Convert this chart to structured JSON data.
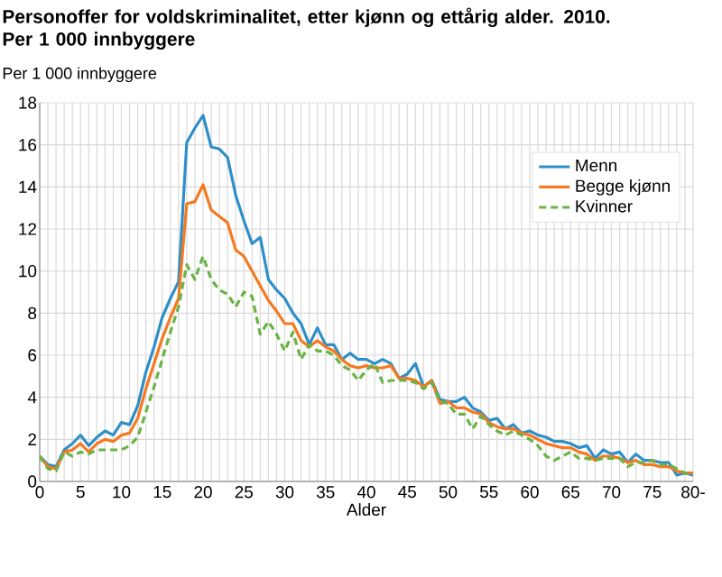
{
  "chart_data": {
    "type": "line",
    "title": "Personoffer for voldskriminalitet, etter kjønn og ettårig alder. 2010. Per 1 000 innbyggere",
    "ylabel": "Per 1 000 innbyggere",
    "xlabel": "Alder",
    "x": [
      0,
      1,
      2,
      3,
      4,
      5,
      6,
      7,
      8,
      9,
      10,
      11,
      12,
      13,
      14,
      15,
      16,
      17,
      18,
      19,
      20,
      21,
      22,
      23,
      24,
      25,
      26,
      27,
      28,
      29,
      30,
      31,
      32,
      33,
      34,
      35,
      36,
      37,
      38,
      39,
      40,
      41,
      42,
      43,
      44,
      45,
      46,
      47,
      48,
      49,
      50,
      51,
      52,
      53,
      54,
      55,
      56,
      57,
      58,
      59,
      60,
      61,
      62,
      63,
      64,
      65,
      66,
      67,
      68,
      69,
      70,
      71,
      72,
      73,
      74,
      75,
      76,
      77,
      78,
      79,
      80
    ],
    "series": [
      {
        "name": "Menn",
        "color": "#2e8fc8",
        "line_style": "solid",
        "values": [
          1.2,
          0.8,
          0.7,
          1.5,
          1.8,
          2.2,
          1.7,
          2.1,
          2.4,
          2.2,
          2.8,
          2.7,
          3.6,
          5.2,
          6.4,
          7.8,
          8.7,
          9.5,
          16.1,
          16.8,
          17.4,
          15.9,
          15.8,
          15.4,
          13.6,
          12.4,
          11.3,
          11.6,
          9.6,
          9.1,
          8.7,
          8.0,
          7.5,
          6.5,
          7.3,
          6.5,
          6.5,
          5.8,
          6.1,
          5.8,
          5.8,
          5.6,
          5.8,
          5.6,
          4.9,
          5.1,
          5.6,
          4.5,
          4.8,
          3.9,
          3.8,
          3.8,
          4.0,
          3.5,
          3.3,
          2.9,
          3.0,
          2.5,
          2.7,
          2.3,
          2.4,
          2.2,
          2.1,
          1.9,
          1.9,
          1.8,
          1.6,
          1.7,
          1.1,
          1.5,
          1.3,
          1.4,
          0.9,
          1.3,
          1.0,
          1.0,
          0.9,
          0.9,
          0.3,
          0.4,
          0.3
        ]
      },
      {
        "name": "Begge kjønn",
        "color": "#f47920",
        "line_style": "solid",
        "values": [
          1.2,
          0.7,
          0.6,
          1.4,
          1.5,
          1.8,
          1.4,
          1.8,
          2.0,
          1.9,
          2.2,
          2.3,
          3.0,
          4.4,
          5.6,
          6.8,
          7.8,
          8.7,
          13.2,
          13.3,
          14.1,
          12.9,
          12.6,
          12.3,
          11.0,
          10.7,
          10.0,
          9.3,
          8.6,
          8.1,
          7.5,
          7.5,
          6.7,
          6.4,
          6.7,
          6.4,
          6.2,
          5.8,
          5.5,
          5.4,
          5.5,
          5.4,
          5.4,
          5.5,
          4.9,
          4.9,
          4.8,
          4.5,
          4.8,
          3.7,
          3.8,
          3.5,
          3.5,
          3.3,
          3.2,
          2.8,
          2.6,
          2.5,
          2.5,
          2.3,
          2.2,
          2.0,
          1.8,
          1.7,
          1.6,
          1.6,
          1.4,
          1.3,
          1.0,
          1.2,
          1.2,
          1.1,
          0.9,
          1.0,
          0.8,
          0.8,
          0.7,
          0.7,
          0.5,
          0.4,
          0.4
        ]
      },
      {
        "name": "Kvinner",
        "color": "#6ab344",
        "line_style": "dashed",
        "values": [
          1.2,
          0.6,
          0.5,
          1.4,
          1.2,
          1.4,
          1.3,
          1.5,
          1.5,
          1.5,
          1.5,
          1.7,
          2.1,
          3.3,
          4.5,
          5.8,
          7.1,
          8.3,
          10.3,
          9.6,
          10.7,
          9.6,
          9.1,
          8.9,
          8.3,
          9.0,
          8.8,
          7.0,
          7.6,
          7.0,
          6.2,
          7.1,
          5.8,
          6.5,
          6.2,
          6.2,
          6.0,
          5.5,
          5.3,
          4.8,
          5.3,
          5.6,
          4.7,
          4.8,
          4.8,
          4.8,
          4.7,
          4.4,
          4.7,
          3.8,
          3.7,
          3.2,
          3.2,
          2.5,
          3.1,
          2.7,
          2.4,
          2.2,
          2.4,
          2.2,
          2.0,
          1.7,
          1.2,
          1.0,
          1.2,
          1.4,
          1.1,
          1.1,
          1.0,
          1.1,
          1.1,
          1.1,
          0.7,
          0.9,
          0.9,
          1.0,
          0.8,
          0.8,
          0.6,
          0.4,
          0.3
        ]
      }
    ],
    "xlim": [
      0,
      80
    ],
    "ylim": [
      0,
      18
    ],
    "xticks": [
      0,
      {
        "value": 1,
        "label": null
      },
      {
        "value": 2,
        "label": null
      },
      {
        "value": 3,
        "label": null
      },
      {
        "value": 4,
        "label": null
      },
      5,
      {
        "value": 6,
        "label": null
      },
      {
        "value": 7,
        "label": null
      },
      {
        "value": 8,
        "label": null
      },
      {
        "value": 9,
        "label": null
      },
      10,
      {
        "value": 11,
        "label": null
      },
      {
        "value": 12,
        "label": null
      },
      {
        "value": 13,
        "label": null
      },
      {
        "value": 14,
        "label": null
      },
      15,
      {
        "value": 16,
        "label": null
      },
      {
        "value": 17,
        "label": null
      },
      {
        "value": 18,
        "label": null
      },
      {
        "value": 19,
        "label": null
      },
      20,
      {
        "value": 21,
        "label": null
      },
      {
        "value": 22,
        "label": null
      },
      {
        "value": 23,
        "label": null
      },
      {
        "value": 24,
        "label": null
      },
      25,
      {
        "value": 26,
        "label": null
      },
      {
        "value": 27,
        "label": null
      },
      {
        "value": 28,
        "label": null
      },
      {
        "value": 29,
        "label": null
      },
      30,
      {
        "value": 31,
        "label": null
      },
      {
        "value": 32,
        "label": null
      },
      {
        "value": 33,
        "label": null
      },
      {
        "value": 34,
        "label": null
      },
      35,
      {
        "value": 36,
        "label": null
      },
      {
        "value": 37,
        "label": null
      },
      {
        "value": 38,
        "label": null
      },
      {
        "value": 39,
        "label": null
      },
      40,
      {
        "value": 41,
        "label": null
      },
      {
        "value": 42,
        "label": null
      },
      {
        "value": 43,
        "label": null
      },
      {
        "value": 44,
        "label": null
      },
      45,
      {
        "value": 46,
        "label": null
      },
      {
        "value": 47,
        "label": null
      },
      {
        "value": 48,
        "label": null
      },
      {
        "value": 49,
        "label": null
      },
      50,
      {
        "value": 51,
        "label": null
      },
      {
        "value": 52,
        "label": null
      },
      {
        "value": 53,
        "label": null
      },
      {
        "value": 54,
        "label": null
      },
      55,
      {
        "value": 56,
        "label": null
      },
      {
        "value": 57,
        "label": null
      },
      {
        "value": 58,
        "label": null
      },
      {
        "value": 59,
        "label": null
      },
      60,
      {
        "value": 61,
        "label": null
      },
      {
        "value": 62,
        "label": null
      },
      {
        "value": 63,
        "label": null
      },
      {
        "value": 64,
        "label": null
      },
      65,
      {
        "value": 66,
        "label": null
      },
      {
        "value": 67,
        "label": null
      },
      {
        "value": 68,
        "label": null
      },
      {
        "value": 69,
        "label": null
      },
      70,
      {
        "value": 71,
        "label": null
      },
      {
        "value": 72,
        "label": null
      },
      {
        "value": 73,
        "label": null
      },
      {
        "value": 74,
        "label": null
      },
      75,
      {
        "value": 76,
        "label": null
      },
      {
        "value": 77,
        "label": null
      },
      {
        "value": 78,
        "label": null
      },
      {
        "value": 79,
        "label": null
      },
      {
        "value": 80,
        "label": "80-"
      }
    ],
    "yticks": [
      0,
      2,
      4,
      6,
      8,
      10,
      12,
      14,
      16,
      18
    ],
    "grid": true,
    "legend": "top right",
    "marker": "none"
  }
}
